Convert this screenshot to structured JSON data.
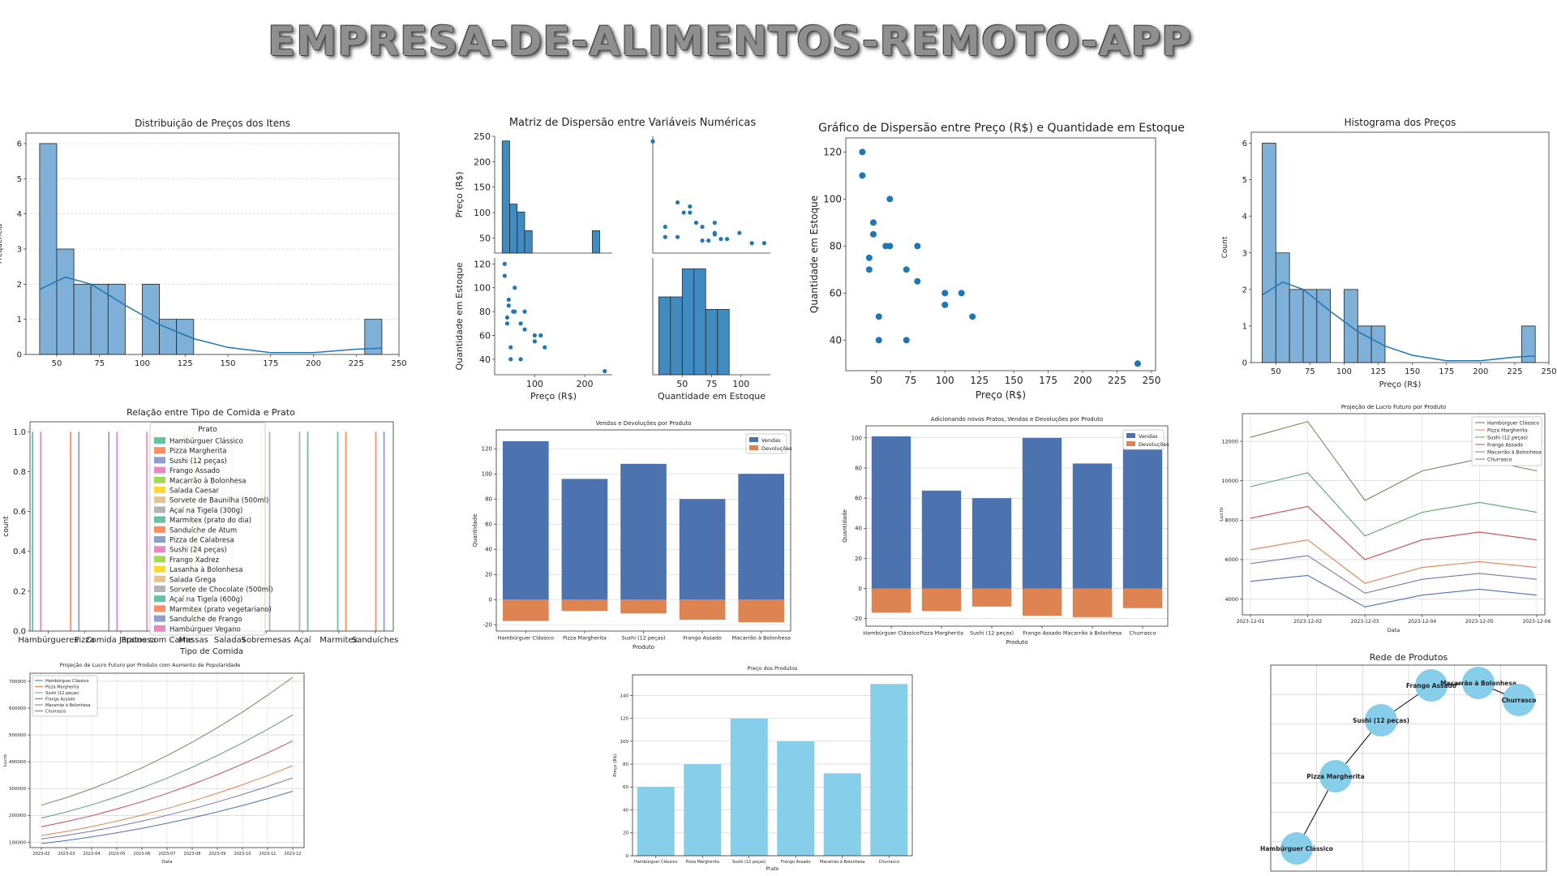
{
  "header": {
    "title": "EMPRESA-DE-ALIMENTOS-REMOTO-APP"
  },
  "colors": {
    "hist": "#7fb1d8",
    "kde": "#1f77b4",
    "scatter": "#1f77b4",
    "vendas": "#4c72b0",
    "devolucoes": "#dd8452",
    "skyblue": "#87ceeb"
  },
  "chart_data": [
    {
      "id": "hist-precos",
      "type": "bar",
      "title": "Distribuição de Preços dos Itens",
      "xlabel": "",
      "ylabel": "Frequência",
      "xlim": [
        32,
        250
      ],
      "ylim": [
        0,
        6.3
      ],
      "xticks": [
        50,
        75,
        100,
        125,
        150,
        175,
        200,
        225,
        250
      ],
      "yticks": [
        0,
        1,
        2,
        3,
        4,
        5,
        6
      ],
      "bin_width": 10,
      "bins": [
        [
          40,
          6
        ],
        [
          50,
          3
        ],
        [
          60,
          2
        ],
        [
          70,
          2
        ],
        [
          80,
          2
        ],
        [
          100,
          2
        ],
        [
          110,
          1
        ],
        [
          120,
          1
        ],
        [
          230,
          1
        ]
      ],
      "kde": [
        [
          40,
          1.85
        ],
        [
          55,
          2.2
        ],
        [
          70,
          2.0
        ],
        [
          90,
          1.4
        ],
        [
          110,
          0.85
        ],
        [
          130,
          0.45
        ],
        [
          150,
          0.2
        ],
        [
          175,
          0.05
        ],
        [
          200,
          0.05
        ],
        [
          225,
          0.15
        ],
        [
          240,
          0.18
        ]
      ]
    },
    {
      "id": "pair-matrix",
      "type": "scatter",
      "title": "Matriz de Dispersão entre Variáveis Numéricas",
      "vars": [
        "Preço (R$)",
        "Quantidade em Estoque"
      ],
      "preco_ticks": [
        50,
        100,
        150,
        200,
        250
      ],
      "preco_xticks": [
        100,
        200
      ],
      "estoque_ticks": [
        40,
        60,
        80,
        100,
        120
      ],
      "estoque_xticks": [
        50,
        75,
        100
      ],
      "preco_hist": [
        [
          35,
          240
        ],
        [
          50,
          105
        ],
        [
          65,
          88
        ],
        [
          80,
          48
        ],
        [
          215,
          48
        ]
      ],
      "estoque_hist": [
        [
          30,
          50
        ],
        [
          40,
          50
        ],
        [
          50,
          68
        ],
        [
          60,
          68
        ],
        [
          70,
          42
        ],
        [
          80,
          42
        ]
      ]
    },
    {
      "id": "scatter-preco-estoque",
      "type": "scatter",
      "title": "Gráfico de Dispersão entre Preço (R$) e Quantidade em Estoque",
      "xlabel": "Preço (R$)",
      "ylabel": "Quantidade em Estoque",
      "xlim": [
        28,
        253
      ],
      "ylim": [
        27,
        126
      ],
      "xticks": [
        50,
        75,
        100,
        125,
        150,
        175,
        200,
        225,
        250
      ],
      "yticks": [
        40,
        60,
        80,
        100,
        120
      ],
      "points": [
        [
          40,
          120
        ],
        [
          40,
          110
        ],
        [
          45,
          75
        ],
        [
          45,
          70
        ],
        [
          48,
          90
        ],
        [
          48,
          85
        ],
        [
          52,
          50
        ],
        [
          52,
          40
        ],
        [
          57,
          80
        ],
        [
          60,
          80
        ],
        [
          60,
          100
        ],
        [
          72,
          70
        ],
        [
          72,
          40
        ],
        [
          80,
          65
        ],
        [
          80,
          80
        ],
        [
          100,
          60
        ],
        [
          100,
          55
        ],
        [
          112,
          60
        ],
        [
          120,
          50
        ],
        [
          240,
          30
        ]
      ]
    },
    {
      "id": "hist-precos-2",
      "type": "bar",
      "title": "Histograma dos Preços",
      "xlabel": "Preço (R$)",
      "ylabel": "Count",
      "xlim": [
        32,
        250
      ],
      "ylim": [
        0,
        6.3
      ],
      "xticks": [
        50,
        75,
        100,
        125,
        150,
        175,
        200,
        225,
        250
      ],
      "yticks": [
        0,
        1,
        2,
        3,
        4,
        5,
        6
      ],
      "bin_width": 10,
      "bins": [
        [
          40,
          6
        ],
        [
          50,
          3
        ],
        [
          60,
          2
        ],
        [
          70,
          2
        ],
        [
          80,
          2
        ],
        [
          100,
          2
        ],
        [
          110,
          1
        ],
        [
          120,
          1
        ],
        [
          230,
          1
        ]
      ],
      "kde": [
        [
          40,
          1.85
        ],
        [
          55,
          2.2
        ],
        [
          70,
          2.0
        ],
        [
          90,
          1.4
        ],
        [
          110,
          0.85
        ],
        [
          130,
          0.45
        ],
        [
          150,
          0.2
        ],
        [
          175,
          0.05
        ],
        [
          200,
          0.05
        ],
        [
          225,
          0.15
        ],
        [
          240,
          0.18
        ]
      ]
    },
    {
      "id": "count-tipo-prato",
      "type": "bar",
      "title": "Relação entre Tipo de Comida e Prato",
      "xlabel": "Tipo de Comida",
      "ylabel": "count",
      "ylim": [
        0,
        1.05
      ],
      "yticks": [
        0.0,
        0.2,
        0.4,
        0.6,
        0.8,
        1.0
      ],
      "categories": [
        "Hambúrgueres",
        "Pizza",
        "Comida Japonesa",
        "Pratos com Carne",
        "Massas",
        "Saladas",
        "Sobremesas",
        "Açaí",
        "Marmitex",
        "Sanduíches"
      ],
      "legend_title": "Prato",
      "legend": [
        {
          "name": "Hambúrguer Clássico",
          "color": "#66c2a5"
        },
        {
          "name": "Pizza Margherita",
          "color": "#fc8d62"
        },
        {
          "name": "Sushi (12 peças)",
          "color": "#8da0cb"
        },
        {
          "name": "Frango Assado",
          "color": "#e78ac3"
        },
        {
          "name": "Macarrão à Bolonhesa",
          "color": "#a6d854"
        },
        {
          "name": "Salada Caesar",
          "color": "#ffd92f"
        },
        {
          "name": "Sorvete de Baunilha (500ml)",
          "color": "#e5c494"
        },
        {
          "name": "Açaí na Tigela (300g)",
          "color": "#b3b3b3"
        },
        {
          "name": "Marmitex (prato do dia)",
          "color": "#66c2a5"
        },
        {
          "name": "Sanduíche de Atum",
          "color": "#fc8d62"
        },
        {
          "name": "Pizza de Calabresa",
          "color": "#8da0cb"
        },
        {
          "name": "Sushi (24 peças)",
          "color": "#e78ac3"
        },
        {
          "name": "Frango Xadrez",
          "color": "#a6d854"
        },
        {
          "name": "Lasanha à Bolonhesa",
          "color": "#ffd92f"
        },
        {
          "name": "Salada Grega",
          "color": "#e5c494"
        },
        {
          "name": "Sorvete de Chocolate (500ml)",
          "color": "#b3b3b3"
        },
        {
          "name": "Açaí na Tigela (600g)",
          "color": "#66c2a5"
        },
        {
          "name": "Marmitex (prato vegetariano)",
          "color": "#fc8d62"
        },
        {
          "name": "Sanduíche de Frango",
          "color": "#8da0cb"
        },
        {
          "name": "Hambúrguer Vegano",
          "color": "#e78ac3"
        }
      ],
      "bars": [
        {
          "cat": 0,
          "color": "#66c2a5"
        },
        {
          "cat": 0,
          "color": "#e78ac3"
        },
        {
          "cat": 1,
          "color": "#fc8d62"
        },
        {
          "cat": 1,
          "color": "#8da0cb"
        },
        {
          "cat": 2,
          "color": "#8da0cb"
        },
        {
          "cat": 2,
          "color": "#e78ac3"
        },
        {
          "cat": 3,
          "color": "#e78ac3"
        },
        {
          "cat": 3,
          "color": "#a6d854"
        },
        {
          "cat": 4,
          "color": "#a6d854"
        },
        {
          "cat": 4,
          "color": "#ffd92f"
        },
        {
          "cat": 5,
          "color": "#ffd92f"
        },
        {
          "cat": 5,
          "color": "#e5c494"
        },
        {
          "cat": 6,
          "color": "#e5c494"
        },
        {
          "cat": 6,
          "color": "#b3b3b3"
        },
        {
          "cat": 7,
          "color": "#b3b3b3"
        },
        {
          "cat": 7,
          "color": "#66c2a5"
        },
        {
          "cat": 8,
          "color": "#66c2a5"
        },
        {
          "cat": 8,
          "color": "#fc8d62"
        },
        {
          "cat": 9,
          "color": "#fc8d62"
        },
        {
          "cat": 9,
          "color": "#8da0cb"
        }
      ]
    },
    {
      "id": "vendas-devolucoes",
      "type": "bar",
      "title": "Vendas e Devoluções por Produto",
      "xlabel": "Produto",
      "ylabel": "Quantidade",
      "ylim": [
        -25,
        135
      ],
      "yticks": [
        -20,
        0,
        20,
        40,
        60,
        80,
        100,
        120
      ],
      "categories": [
        "Hambúrguer Clássico",
        "Pizza Margherita",
        "Sushi (12 peças)",
        "Frango Assado",
        "Macarrão à Bolonhesa"
      ],
      "series": [
        {
          "name": "Vendas",
          "values": [
            126,
            96,
            108,
            80,
            100
          ]
        },
        {
          "name": "Devoluções",
          "values": [
            -17,
            -9,
            -11,
            -16,
            -18
          ]
        }
      ]
    },
    {
      "id": "vendas-devolucoes-novos",
      "type": "bar",
      "title": "Adicionando novos Pratos, Vendas e Devoluções por Produto",
      "xlabel": "Produto",
      "ylabel": "Quantidade",
      "ylim": [
        -25,
        108
      ],
      "yticks": [
        -20,
        0,
        20,
        40,
        60,
        80,
        100
      ],
      "categories": [
        "Hambúrguer Clássico",
        "Pizza Margherita",
        "Sushi (12 peças)",
        "Frango Assado",
        "Macarrão à Bolonhesa",
        "Churrasco"
      ],
      "series": [
        {
          "name": "Vendas",
          "values": [
            101,
            65,
            60,
            100,
            83,
            94
          ]
        },
        {
          "name": "Devoluções",
          "values": [
            -16,
            -15,
            -12,
            -18,
            -19,
            -13
          ]
        }
      ]
    },
    {
      "id": "projecao-lucro",
      "type": "line",
      "title": "Projeção de Lucro Futuro por Produto",
      "xlabel": "Data",
      "ylabel": "Lucro",
      "ylim": [
        3200,
        13400
      ],
      "yticks": [
        4000,
        6000,
        8000,
        10000,
        12000
      ],
      "x": [
        "2023-12-01",
        "2023-12-02",
        "2023-12-03",
        "2023-12-04",
        "2023-12-05",
        "2023-12-06"
      ],
      "series": [
        {
          "name": "Hambúrguer Clássico",
          "color": "#4c72b0",
          "values": [
            4900,
            5200,
            3600,
            4200,
            4500,
            4200
          ]
        },
        {
          "name": "Pizza Margherita",
          "color": "#dd8452",
          "values": [
            6500,
            7000,
            4800,
            5600,
            5900,
            5600
          ]
        },
        {
          "name": "Sushi (12 peças)",
          "color": "#55a868",
          "values": [
            9700,
            10400,
            7200,
            8400,
            8900,
            8400
          ]
        },
        {
          "name": "Frango Assado",
          "color": "#c44e52",
          "values": [
            8100,
            8700,
            6000,
            7000,
            7400,
            7000
          ]
        },
        {
          "name": "Macarrão à Bolonhesa",
          "color": "#8172b3",
          "values": [
            5800,
            6200,
            4300,
            5000,
            5300,
            5000
          ]
        },
        {
          "name": "Churrasco",
          "color": "#937860",
          "values": [
            12200,
            13000,
            9000,
            10500,
            11100,
            10500
          ]
        }
      ]
    },
    {
      "id": "projecao-lucro-popularidade",
      "type": "line",
      "title": "Projeção de Lucro Futuro por Produto com Aumento de Popularidade",
      "xlabel": "Data",
      "ylabel": "Lucro",
      "ylim": [
        80000,
        730000
      ],
      "yticks": [
        100000,
        200000,
        300000,
        400000,
        500000,
        600000,
        700000
      ],
      "x": [
        "2023-02",
        "2023-03",
        "2023-04",
        "2023-05",
        "2023-06",
        "2023-07",
        "2023-08",
        "2023-09",
        "2023-10",
        "2023-11",
        "2023-12"
      ],
      "series": [
        {
          "name": "Hambúrguer Clássico",
          "color": "#4c72b0",
          "start": 95000,
          "end": 290000
        },
        {
          "name": "Pizza Margherita",
          "color": "#dd8452",
          "start": 125000,
          "end": 385000
        },
        {
          "name": "Sushi (12 peças)",
          "color": "#55a868",
          "start": 190000,
          "end": 575000
        },
        {
          "name": "Frango Assado",
          "color": "#c44e52",
          "start": 158000,
          "end": 478000
        },
        {
          "name": "Macarrão à Bolonhesa",
          "color": "#8172b3",
          "start": 112000,
          "end": 340000
        },
        {
          "name": "Churrasco",
          "color": "#937860",
          "start": 238000,
          "end": 715000
        }
      ]
    },
    {
      "id": "preco-produtos",
      "type": "bar",
      "title": "Preço dos Produtos",
      "xlabel": "Prato",
      "ylabel": "Preço (R$)",
      "ylim": [
        0,
        158
      ],
      "yticks": [
        0,
        20,
        40,
        60,
        80,
        100,
        120,
        140
      ],
      "categories": [
        "Hambúrguer Clássico",
        "Pizza Margherita",
        "Sushi (12 peças)",
        "Frango Assado",
        "Macarrão à Bolonhesa",
        "Churrasco"
      ],
      "values": [
        60,
        80,
        120,
        100,
        72,
        150
      ]
    },
    {
      "id": "rede-produtos",
      "type": "network",
      "title": "Rede de Produtos",
      "nodes": [
        "Hambúrguer Clássico",
        "Pizza Margherita",
        "Sushi (12 peças)",
        "Frango Assado",
        "Macarrão à Bolonhesa",
        "Churrasco"
      ]
    }
  ]
}
